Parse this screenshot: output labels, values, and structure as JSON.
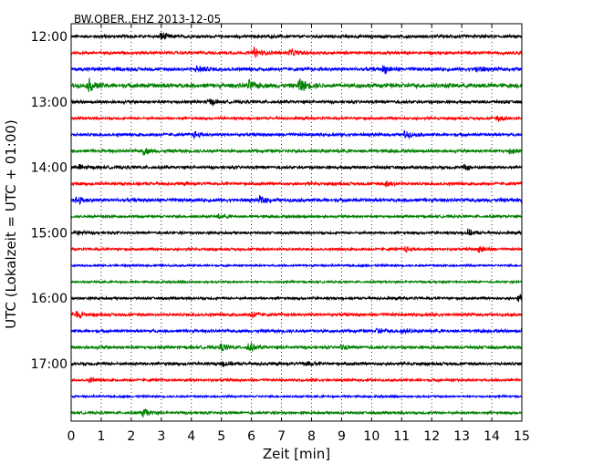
{
  "chart_data": {
    "type": "line",
    "title": "BW.OBER..EHZ 2013-12-05",
    "xlabel": "Zeit  [min]",
    "ylabel": "UTC (Lokalzeit = UTC + 01:00)",
    "x_ticks": [
      0,
      1,
      2,
      3,
      4,
      5,
      6,
      7,
      8,
      9,
      10,
      11,
      12,
      13,
      14,
      15
    ],
    "xlim": [
      0,
      15
    ],
    "y_tick_labels": [
      "12:00",
      "13:00",
      "14:00",
      "15:00",
      "16:00",
      "17:00"
    ],
    "trace_interval_min": 15,
    "grid": "vertical dotted at each minute",
    "trace_colors": [
      "#000000",
      "#ff0000",
      "#0000ff",
      "#008000"
    ],
    "traces": [
      {
        "start": "12:00",
        "color": "#000000",
        "amplitude": 0.3,
        "events": [
          {
            "t": 3.0,
            "a": 0.9
          }
        ]
      },
      {
        "start": "12:15",
        "color": "#ff0000",
        "amplitude": 0.3,
        "events": [
          {
            "t": 6.1,
            "a": 1.1
          },
          {
            "t": 7.3,
            "a": 0.7
          }
        ]
      },
      {
        "start": "12:30",
        "color": "#0000ff",
        "amplitude": 0.35,
        "events": [
          {
            "t": 4.2,
            "a": 0.7
          },
          {
            "t": 10.4,
            "a": 0.8
          },
          {
            "t": 13.5,
            "a": 0.7
          }
        ]
      },
      {
        "start": "12:45",
        "color": "#008000",
        "amplitude": 0.45,
        "events": [
          {
            "t": 0.6,
            "a": 1.2
          },
          {
            "t": 5.9,
            "a": 1.0
          },
          {
            "t": 7.6,
            "a": 1.5
          }
        ]
      },
      {
        "start": "13:00",
        "color": "#000000",
        "amplitude": 0.3,
        "events": [
          {
            "t": 4.6,
            "a": 0.6
          }
        ]
      },
      {
        "start": "13:15",
        "color": "#ff0000",
        "amplitude": 0.25,
        "events": [
          {
            "t": 14.2,
            "a": 0.7
          }
        ]
      },
      {
        "start": "13:30",
        "color": "#0000ff",
        "amplitude": 0.3,
        "events": [
          {
            "t": 4.1,
            "a": 0.6
          },
          {
            "t": 11.1,
            "a": 0.7
          }
        ]
      },
      {
        "start": "13:45",
        "color": "#008000",
        "amplitude": 0.3,
        "events": [
          {
            "t": 2.4,
            "a": 0.7
          },
          {
            "t": 14.6,
            "a": 0.6
          }
        ]
      },
      {
        "start": "14:00",
        "color": "#000000",
        "amplitude": 0.3,
        "events": [
          {
            "t": 0.3,
            "a": 0.6
          },
          {
            "t": 13.1,
            "a": 0.6
          }
        ]
      },
      {
        "start": "14:15",
        "color": "#ff0000",
        "amplitude": 0.3,
        "events": [
          {
            "t": 10.5,
            "a": 0.6
          }
        ]
      },
      {
        "start": "14:30",
        "color": "#0000ff",
        "amplitude": 0.35,
        "events": [
          {
            "t": 0.2,
            "a": 0.8
          },
          {
            "t": 6.3,
            "a": 0.8
          }
        ]
      },
      {
        "start": "14:45",
        "color": "#008000",
        "amplitude": 0.25,
        "events": [
          {
            "t": 4.9,
            "a": 0.5
          }
        ]
      },
      {
        "start": "15:00",
        "color": "#000000",
        "amplitude": 0.25,
        "events": [
          {
            "t": 0.2,
            "a": 0.7
          },
          {
            "t": 13.2,
            "a": 0.6
          }
        ]
      },
      {
        "start": "15:15",
        "color": "#ff0000",
        "amplitude": 0.25,
        "events": [
          {
            "t": 11.1,
            "a": 0.6
          },
          {
            "t": 13.6,
            "a": 0.8
          }
        ]
      },
      {
        "start": "15:30",
        "color": "#0000ff",
        "amplitude": 0.2,
        "events": []
      },
      {
        "start": "15:45",
        "color": "#008000",
        "amplitude": 0.2,
        "events": []
      },
      {
        "start": "16:00",
        "color": "#000000",
        "amplitude": 0.25,
        "events": [
          {
            "t": 14.9,
            "a": 0.9
          }
        ]
      },
      {
        "start": "16:15",
        "color": "#ff0000",
        "amplitude": 0.3,
        "events": [
          {
            "t": 0.2,
            "a": 0.8
          },
          {
            "t": 6.0,
            "a": 0.7
          }
        ]
      },
      {
        "start": "16:30",
        "color": "#0000ff",
        "amplitude": 0.3,
        "events": [
          {
            "t": 10.2,
            "a": 0.6
          },
          {
            "t": 11.0,
            "a": 0.6
          }
        ]
      },
      {
        "start": "16:45",
        "color": "#008000",
        "amplitude": 0.3,
        "events": [
          {
            "t": 5.0,
            "a": 0.8
          },
          {
            "t": 5.9,
            "a": 1.1
          },
          {
            "t": 9.0,
            "a": 0.5
          }
        ]
      },
      {
        "start": "17:00",
        "color": "#000000",
        "amplitude": 0.3,
        "events": [
          {
            "t": 5.0,
            "a": 0.6
          },
          {
            "t": 7.8,
            "a": 0.6
          }
        ]
      },
      {
        "start": "17:15",
        "color": "#ff0000",
        "amplitude": 0.25,
        "events": [
          {
            "t": 0.6,
            "a": 0.5
          }
        ]
      },
      {
        "start": "17:30",
        "color": "#0000ff",
        "amplitude": 0.2,
        "events": []
      },
      {
        "start": "17:45",
        "color": "#008000",
        "amplitude": 0.25,
        "events": [
          {
            "t": 2.4,
            "a": 0.9
          }
        ]
      }
    ]
  }
}
